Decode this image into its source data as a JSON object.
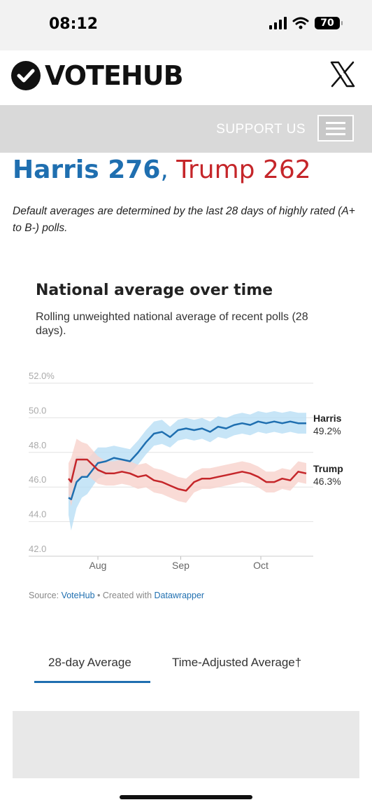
{
  "status_bar": {
    "time": "08:12",
    "battery": "70"
  },
  "header": {
    "logo_text": "VOTEHUB"
  },
  "nav": {
    "support_label": "SUPPORT US"
  },
  "headline": {
    "harris": "Harris 276",
    "separator": ",",
    "trump": "Trump 262"
  },
  "note": "Default averages are determined by the last 28 days of highly rated (A+ to B-) polls.",
  "chart_data": {
    "type": "line",
    "title": "National average over time",
    "subtitle": "Rolling unweighted national average of recent polls (28 days).",
    "x_ticks": [
      "Aug",
      "Sep",
      "Oct"
    ],
    "y_ticks": [
      "52.0%",
      "50.0",
      "48.0",
      "46.0",
      "44.0",
      "42.0"
    ],
    "ylim": [
      42,
      52
    ],
    "grid": true,
    "series": [
      {
        "name": "Harris",
        "end_label": "49.2%",
        "color": "#1f6fb0",
        "band_color": "#b9def5",
        "x": [
          "2024-07-21",
          "2024-07-22",
          "2024-07-24",
          "2024-07-26",
          "2024-07-28",
          "2024-08-01",
          "2024-08-04",
          "2024-08-07",
          "2024-08-10",
          "2024-08-13",
          "2024-08-16",
          "2024-08-19",
          "2024-08-22",
          "2024-08-25",
          "2024-08-28",
          "2024-08-31",
          "2024-09-03",
          "2024-09-06",
          "2024-09-09",
          "2024-09-12",
          "2024-09-15",
          "2024-09-18",
          "2024-09-21",
          "2024-09-24",
          "2024-09-27",
          "2024-09-30",
          "2024-10-03",
          "2024-10-06",
          "2024-10-09",
          "2024-10-12",
          "2024-10-15",
          "2024-10-18"
        ],
        "values": [
          44.9,
          44.8,
          45.8,
          46.1,
          46.1,
          46.9,
          47.0,
          47.2,
          47.1,
          47.0,
          47.5,
          48.1,
          48.6,
          48.7,
          48.4,
          48.8,
          48.9,
          48.8,
          48.9,
          48.7,
          49.0,
          48.9,
          49.1,
          49.2,
          49.1,
          49.3,
          49.2,
          49.3,
          49.2,
          49.3,
          49.2,
          49.2
        ],
        "band_width": [
          1.0,
          1.8,
          1.5,
          1.2,
          1.0,
          0.9,
          0.8,
          0.7,
          0.7,
          0.7,
          0.7,
          0.7,
          0.7,
          0.7,
          0.6,
          0.6,
          0.6,
          0.6,
          0.6,
          0.6,
          0.6,
          0.6,
          0.6,
          0.6,
          0.6,
          0.6,
          0.6,
          0.6,
          0.6,
          0.6,
          0.6,
          0.6
        ]
      },
      {
        "name": "Trump",
        "end_label": "46.3%",
        "color": "#c5262a",
        "band_color": "#f8d2cc",
        "x": [
          "2024-07-21",
          "2024-07-22",
          "2024-07-24",
          "2024-07-26",
          "2024-07-28",
          "2024-08-01",
          "2024-08-04",
          "2024-08-07",
          "2024-08-10",
          "2024-08-13",
          "2024-08-16",
          "2024-08-19",
          "2024-08-22",
          "2024-08-25",
          "2024-08-28",
          "2024-08-31",
          "2024-09-03",
          "2024-09-06",
          "2024-09-09",
          "2024-09-12",
          "2024-09-15",
          "2024-09-18",
          "2024-09-21",
          "2024-09-24",
          "2024-09-27",
          "2024-09-30",
          "2024-10-03",
          "2024-10-06",
          "2024-10-09",
          "2024-10-12",
          "2024-10-15",
          "2024-10-18"
        ],
        "values": [
          46.0,
          45.8,
          47.1,
          47.1,
          47.1,
          46.5,
          46.3,
          46.3,
          46.4,
          46.3,
          46.1,
          46.2,
          45.9,
          45.8,
          45.6,
          45.4,
          45.3,
          45.8,
          46.0,
          46.0,
          46.1,
          46.2,
          46.3,
          46.4,
          46.3,
          46.1,
          45.8,
          45.8,
          46.0,
          45.9,
          46.4,
          46.3
        ],
        "band_width": [
          0.9,
          1.4,
          1.2,
          1.0,
          0.9,
          0.8,
          0.7,
          0.7,
          0.7,
          0.7,
          0.7,
          0.7,
          0.7,
          0.7,
          0.7,
          0.7,
          0.7,
          0.6,
          0.6,
          0.6,
          0.6,
          0.6,
          0.6,
          0.6,
          0.6,
          0.6,
          0.6,
          0.6,
          0.6,
          0.6,
          0.6,
          0.6
        ]
      }
    ]
  },
  "source": {
    "prefix": "Source: ",
    "votehub": "VoteHub",
    "middle": " • Created with ",
    "datawrapper": "Datawrapper"
  },
  "tabs": [
    "28-day Average",
    "Time-Adjusted Average†"
  ]
}
